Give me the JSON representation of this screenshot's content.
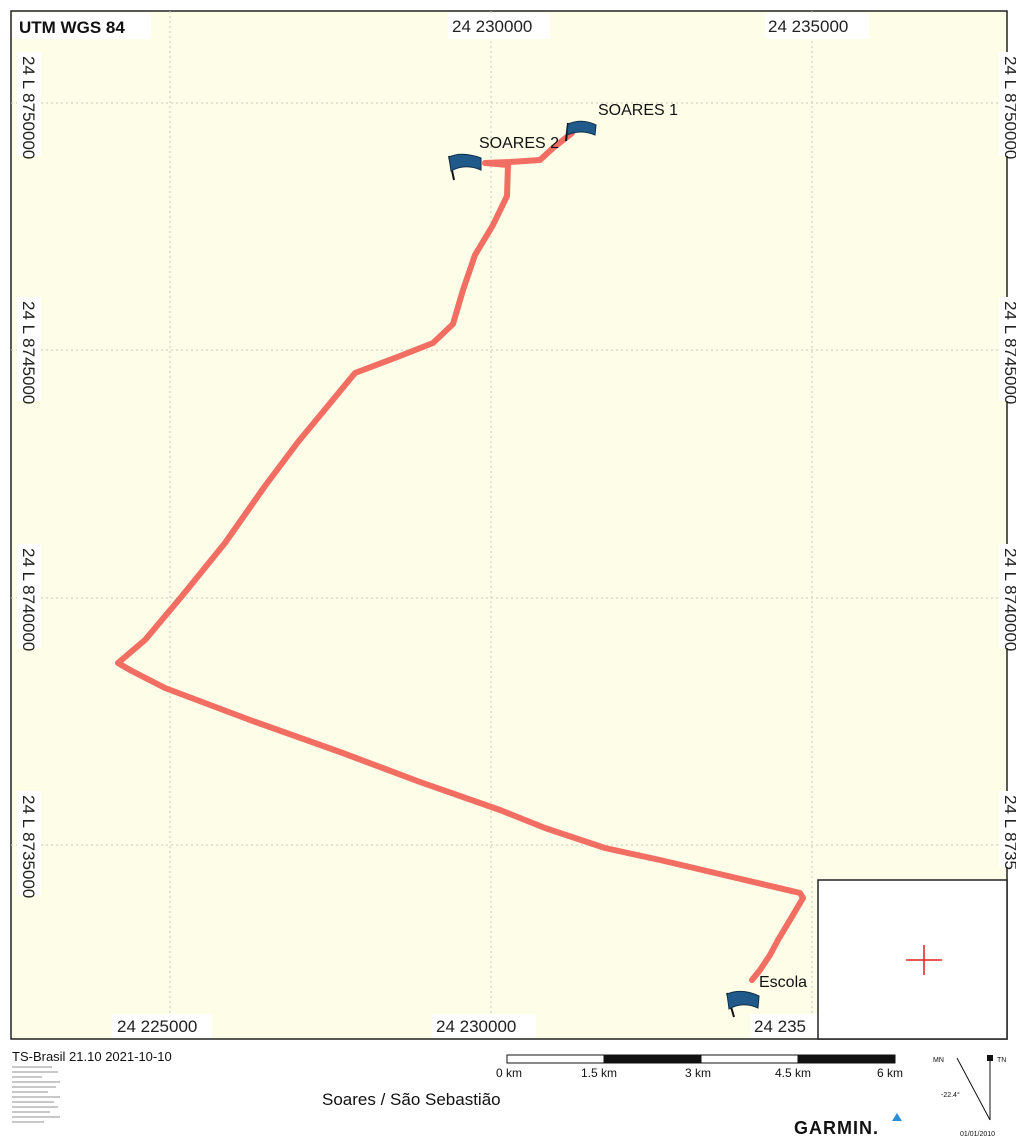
{
  "map": {
    "crs_label": "UTM WGS 84",
    "background_color": "#fdfde8",
    "track_color": "#f26e63",
    "grid_color": "#c9c9b8",
    "easting_labels_top": [
      "24 230000",
      "24 235000"
    ],
    "easting_labels_bottom": [
      "24 225000",
      "24 230000",
      "24 235"
    ],
    "northing_labels_left": [
      "24 L 8750000",
      "24 L 8745000",
      "24 L 8740000",
      "24 L 8735000"
    ],
    "northing_labels_right": [
      "24 L 8750000",
      "24 L 8745000",
      "24 L 8740000",
      "24 L 8735"
    ],
    "waypoints": [
      {
        "name": "SOARES 1",
        "icon": "blue-flag-icon"
      },
      {
        "name": "SOARES 2",
        "icon": "blue-flag-icon"
      },
      {
        "name": "Escola",
        "icon": "blue-flag-icon"
      }
    ]
  },
  "footer": {
    "product": "TS-Brasil 21.10 2021-10-10",
    "map_title": "Soares / São Sebastião",
    "brand": "GARMIN.",
    "scale_labels": [
      "0 km",
      "1.5 km",
      "3 km",
      "4.5 km",
      "6 km"
    ],
    "declination": {
      "mn_label": "MN",
      "tn_label": "TN",
      "angle": "-22.4°",
      "date": "01/01/2010"
    }
  }
}
